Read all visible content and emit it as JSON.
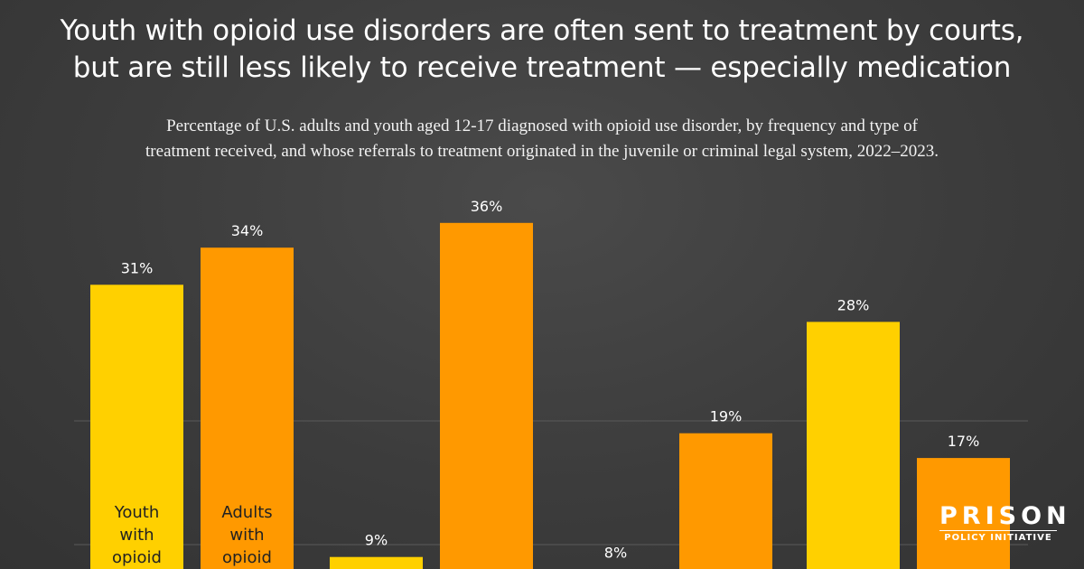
{
  "title": {
    "line1": "Youth with opioid use disorders are often sent to treatment by courts,",
    "line2": "but are still less likely to receive treatment — especially medication"
  },
  "subtitle": {
    "line1": "Percentage of U.S. adults and youth aged 12-17 diagnosed with opioid use disorder, by frequency and type of",
    "line2": "treatment received, and whose referrals to treatment originated in the juvenile or criminal legal system, 2022–2023."
  },
  "logo": {
    "main": "PRISON",
    "sub": "POLICY INITIATIVE"
  },
  "chart_data": {
    "type": "bar",
    "title": "Youth with opioid use disorders are often sent to treatment by courts, but are still less likely to receive treatment — especially medication",
    "series": [
      {
        "name": "Youth with opioid use disorder",
        "color": "#FFD000",
        "values": [
          31,
          9,
          8,
          28
        ]
      },
      {
        "name": "Adults with opioid use disorder",
        "color": "#FF9900",
        "values": [
          34,
          36,
          19,
          17
        ]
      }
    ],
    "group_count": 4,
    "data_labels": {
      "youth": [
        "31%",
        "9%",
        "8%",
        "28%"
      ],
      "adults": [
        "34%",
        "36%",
        "19%",
        "17%"
      ]
    },
    "in_bar_labels": {
      "youth": [
        "Youth",
        "with",
        "opioid"
      ],
      "adults": [
        "Adults",
        "with",
        "opioid"
      ]
    },
    "gridlines": [
      10,
      20
    ],
    "grid": true,
    "ylim": [
      0,
      40
    ],
    "xlabel": "",
    "ylabel": "",
    "colors": {
      "grid": "#5a5a5a",
      "label": "#ffffff",
      "in_bar_text": "#222222"
    }
  }
}
